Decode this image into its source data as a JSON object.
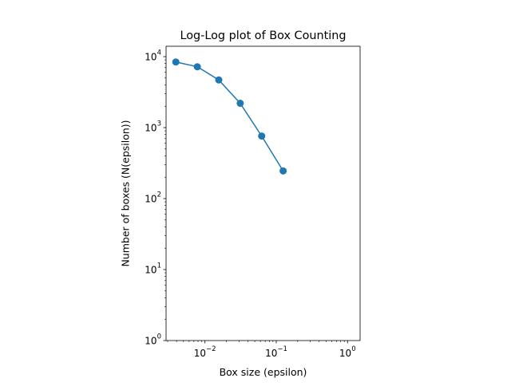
{
  "chart_data": {
    "type": "line",
    "title": "Log-Log plot of Box Counting",
    "xlabel": "Box size (epsilon)",
    "ylabel": "Number of boxes (N(epsilon))",
    "xscale": "log",
    "yscale": "log",
    "xlim": [
      0.00285,
      1.5
    ],
    "ylim": [
      1,
      14000
    ],
    "grid": false,
    "legend": "none",
    "x_ticks": [
      {
        "value": 0.01,
        "base": "10",
        "exp": "−2"
      },
      {
        "value": 0.1,
        "base": "10",
        "exp": "−1"
      },
      {
        "value": 1,
        "base": "10",
        "exp": "0"
      }
    ],
    "y_ticks": [
      {
        "value": 1,
        "base": "10",
        "exp": "0"
      },
      {
        "value": 10,
        "base": "10",
        "exp": "1"
      },
      {
        "value": 100,
        "base": "10",
        "exp": "2"
      },
      {
        "value": 1000,
        "base": "10",
        "exp": "3"
      },
      {
        "value": 10000,
        "base": "10",
        "exp": "4"
      }
    ],
    "series": [
      {
        "color": "#1f77b4",
        "marker": "circle",
        "x": [
          0.00390625,
          0.0078125,
          0.015625,
          0.03125,
          0.0625,
          0.125
        ],
        "y": [
          8400,
          7200,
          4700,
          2200,
          760,
          245
        ]
      }
    ]
  }
}
